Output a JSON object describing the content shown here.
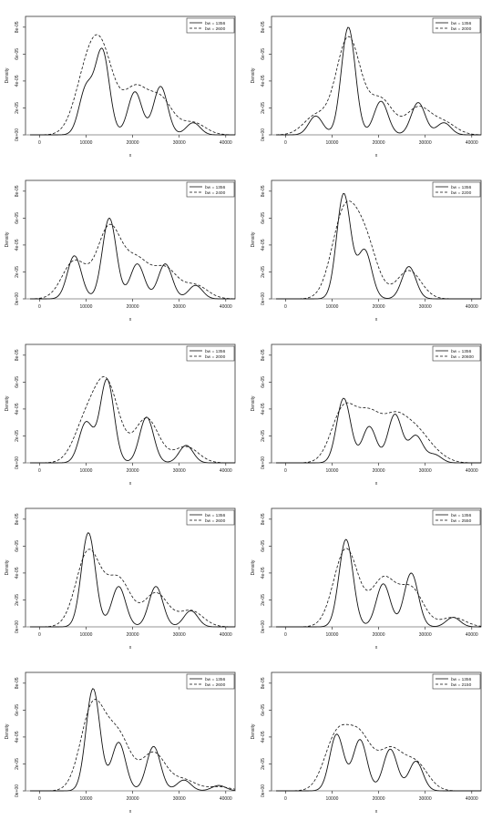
{
  "chart_data": [
    {
      "type": "line",
      "panel": 1,
      "xlim": [
        -3000,
        42000
      ],
      "ylim": [
        0,
        8.8
      ],
      "ylabel": "Density",
      "xlabel": "x",
      "yticks": [
        "0e+00",
        "2e-05",
        "4e-05",
        "6e-05",
        "8e-05"
      ],
      "xticks": [
        "0",
        "10000",
        "20000",
        "30000",
        "40000"
      ],
      "y_tick_values": [
        0,
        2,
        4,
        6,
        8
      ],
      "x_tick_values": [
        0,
        10000,
        20000,
        30000,
        40000
      ],
      "legend": {
        "position": "top-right",
        "entries": [
          "bw = 1356",
          "bw = 2600"
        ]
      },
      "series": [
        {
          "name": "bw = 1356",
          "style": "solid",
          "peaks": [
            [
              10000,
              3.4
            ],
            [
              13500,
              6.2
            ],
            [
              20500,
              3.2
            ],
            [
              26000,
              3.6
            ],
            [
              33000,
              0.9
            ]
          ]
        },
        {
          "name": "bw = 2600",
          "style": "dashed",
          "peaks": [
            [
              10000,
              3.8
            ],
            [
              13500,
              5.4
            ],
            [
              20500,
              3.3
            ],
            [
              26000,
              2.6
            ],
            [
              33000,
              0.9
            ]
          ]
        }
      ]
    },
    {
      "type": "line",
      "panel": 2,
      "xlim": [
        -3000,
        42000
      ],
      "ylim": [
        0,
        8.8
      ],
      "ylabel": "Density",
      "xlabel": "x",
      "yticks": [
        "0e+00",
        "2e-05",
        "4e-05",
        "6e-05",
        "8e-05"
      ],
      "xticks": [
        "0",
        "10000",
        "20000",
        "30000",
        "40000"
      ],
      "y_tick_values": [
        0,
        2,
        4,
        6,
        8
      ],
      "x_tick_values": [
        0,
        10000,
        20000,
        30000,
        40000
      ],
      "legend": {
        "position": "top-right",
        "entries": [
          "bw = 1356",
          "bw = 2000"
        ]
      },
      "series": [
        {
          "name": "bw = 1356",
          "style": "solid",
          "peaks": [
            [
              6500,
              1.4
            ],
            [
              13500,
              8.0
            ],
            [
              20500,
              2.5
            ],
            [
              28500,
              2.4
            ],
            [
              34000,
              0.9
            ]
          ]
        },
        {
          "name": "bw = 2000",
          "style": "dashed",
          "peaks": [
            [
              6500,
              1.4
            ],
            [
              13500,
              7.2
            ],
            [
              20500,
              2.6
            ],
            [
              28500,
              2.0
            ],
            [
              34000,
              0.9
            ]
          ]
        }
      ]
    },
    {
      "type": "line",
      "panel": 3,
      "xlim": [
        -3000,
        42000
      ],
      "ylim": [
        0,
        8.8
      ],
      "ylabel": "Density",
      "xlabel": "x",
      "yticks": [
        "0e+00",
        "2e-05",
        "4e-05",
        "6e-05",
        "8e-05"
      ],
      "xticks": [
        "0",
        "10000",
        "20000",
        "30000",
        "40000"
      ],
      "y_tick_values": [
        0,
        2,
        4,
        6,
        8
      ],
      "x_tick_values": [
        0,
        10000,
        20000,
        30000,
        40000
      ],
      "legend": {
        "position": "top-right",
        "entries": [
          "bw = 1356",
          "bw = 2400"
        ]
      },
      "series": [
        {
          "name": "bw = 1356",
          "style": "solid",
          "peaks": [
            [
              7500,
              3.2
            ],
            [
              15000,
              6.0
            ],
            [
              21000,
              2.6
            ],
            [
              27000,
              2.6
            ],
            [
              33500,
              1.0
            ]
          ]
        },
        {
          "name": "bw = 2400",
          "style": "dashed",
          "peaks": [
            [
              7500,
              2.8
            ],
            [
              15000,
              5.3
            ],
            [
              21000,
              2.7
            ],
            [
              27000,
              2.2
            ],
            [
              33500,
              1.0
            ]
          ]
        }
      ]
    },
    {
      "type": "line",
      "panel": 4,
      "xlim": [
        -3000,
        42000
      ],
      "ylim": [
        0,
        8.8
      ],
      "ylabel": "Density",
      "xlabel": "x",
      "yticks": [
        "0e+00",
        "2e-05",
        "4e-05",
        "6e-05",
        "8e-05"
      ],
      "xticks": [
        "0",
        "10000",
        "20000",
        "30000",
        "40000"
      ],
      "y_tick_values": [
        0,
        2,
        4,
        6,
        8
      ],
      "x_tick_values": [
        0,
        10000,
        20000,
        30000,
        40000
      ],
      "legend": {
        "position": "top-right",
        "entries": [
          "bw = 1356",
          "bw = 2200"
        ]
      },
      "series": [
        {
          "name": "bw = 1356",
          "style": "solid",
          "peaks": [
            [
              12500,
              7.8
            ],
            [
              17000,
              3.6
            ],
            [
              26500,
              2.4
            ]
          ]
        },
        {
          "name": "bw = 2200",
          "style": "dashed",
          "peaks": [
            [
              12500,
              6.0
            ],
            [
              17000,
              4.2
            ],
            [
              26500,
              2.1
            ]
          ]
        }
      ]
    },
    {
      "type": "line",
      "panel": 5,
      "xlim": [
        -3000,
        42000
      ],
      "ylim": [
        0,
        8.8
      ],
      "ylabel": "Density",
      "xlabel": "x",
      "yticks": [
        "0e+00",
        "2e-05",
        "4e-05",
        "6e-05",
        "8e-05"
      ],
      "xticks": [
        "0",
        "10000",
        "20000",
        "30000",
        "40000"
      ],
      "y_tick_values": [
        0,
        2,
        4,
        6,
        8
      ],
      "x_tick_values": [
        0,
        10000,
        20000,
        30000,
        40000
      ],
      "legend": {
        "position": "top-right",
        "entries": [
          "bw = 1356",
          "bw = 2000"
        ]
      },
      "series": [
        {
          "name": "bw = 1356",
          "style": "solid",
          "peaks": [
            [
              10000,
              3.0
            ],
            [
              14500,
              6.2
            ],
            [
              23000,
              3.4
            ],
            [
              31500,
              1.3
            ]
          ]
        },
        {
          "name": "bw = 2000",
          "style": "dashed",
          "peaks": [
            [
              10000,
              2.9
            ],
            [
              14500,
              5.6
            ],
            [
              23000,
              3.3
            ],
            [
              31500,
              1.2
            ]
          ]
        }
      ]
    },
    {
      "type": "line",
      "panel": 6,
      "xlim": [
        -3000,
        42000
      ],
      "ylim": [
        0,
        8.8
      ],
      "ylabel": "Density",
      "xlabel": "x",
      "yticks": [
        "0e+00",
        "2e-05",
        "4e-05",
        "6e-05",
        "8e-05"
      ],
      "xticks": [
        "0",
        "10000",
        "20000",
        "30000",
        "40000"
      ],
      "y_tick_values": [
        0,
        2,
        4,
        6,
        8
      ],
      "x_tick_values": [
        0,
        10000,
        20000,
        30000,
        40000
      ],
      "legend": {
        "position": "top-right",
        "entries": [
          "bw = 1356",
          "bw = 20600"
        ]
      },
      "series": [
        {
          "name": "bw = 1356",
          "style": "solid",
          "peaks": [
            [
              12500,
              4.8
            ],
            [
              18000,
              2.7
            ],
            [
              23500,
              3.6
            ],
            [
              28000,
              2.0
            ],
            [
              32000,
              0.6
            ]
          ]
        },
        {
          "name": "bw = 20600",
          "style": "dashed",
          "peaks": [
            [
              12500,
              4.0
            ],
            [
              18000,
              3.3
            ],
            [
              23500,
              3.0
            ],
            [
              28000,
              2.0
            ],
            [
              32000,
              0.6
            ]
          ]
        }
      ]
    },
    {
      "type": "line",
      "panel": 7,
      "xlim": [
        -3000,
        42000
      ],
      "ylim": [
        0,
        8.8
      ],
      "ylabel": "Density",
      "xlabel": "x",
      "yticks": [
        "0e+00",
        "2e-05",
        "4e-05",
        "6e-05",
        "8e-05"
      ],
      "xticks": [
        "0",
        "10000",
        "20000",
        "30000",
        "40000"
      ],
      "y_tick_values": [
        0,
        2,
        4,
        6,
        8
      ],
      "x_tick_values": [
        0,
        10000,
        20000,
        30000,
        40000
      ],
      "legend": {
        "position": "top-right",
        "entries": [
          "bw = 1356",
          "bw = 2600"
        ]
      },
      "series": [
        {
          "name": "bw = 1356",
          "style": "solid",
          "peaks": [
            [
              10500,
              7.0
            ],
            [
              17000,
              3.0
            ],
            [
              25000,
              3.0
            ],
            [
              32500,
              1.2
            ]
          ]
        },
        {
          "name": "bw = 2600",
          "style": "dashed",
          "peaks": [
            [
              10500,
              5.6
            ],
            [
              17000,
              3.5
            ],
            [
              25000,
              2.5
            ],
            [
              32500,
              1.2
            ]
          ]
        }
      ]
    },
    {
      "type": "line",
      "panel": 8,
      "xlim": [
        -3000,
        42000
      ],
      "ylim": [
        0,
        8.8
      ],
      "ylabel": "Density",
      "xlabel": "x",
      "yticks": [
        "0e+00",
        "2e-05",
        "4e-05",
        "6e-05",
        "8e-05"
      ],
      "xticks": [
        "0",
        "10000",
        "20000",
        "30000",
        "40000"
      ],
      "y_tick_values": [
        0,
        2,
        4,
        6,
        8
      ],
      "x_tick_values": [
        0,
        10000,
        20000,
        30000,
        40000
      ],
      "legend": {
        "position": "top-right",
        "entries": [
          "bw = 1356",
          "bw = 2550"
        ]
      },
      "series": [
        {
          "name": "bw = 1356",
          "style": "solid",
          "peaks": [
            [
              13000,
              6.5
            ],
            [
              21000,
              3.2
            ],
            [
              27000,
              4.0
            ],
            [
              36000,
              0.7
            ]
          ]
        },
        {
          "name": "bw = 2550",
          "style": "dashed",
          "peaks": [
            [
              13000,
              5.8
            ],
            [
              21000,
              3.5
            ],
            [
              27000,
              2.8
            ],
            [
              36000,
              0.7
            ]
          ]
        }
      ]
    },
    {
      "type": "line",
      "panel": 9,
      "xlim": [
        -3000,
        42000
      ],
      "ylim": [
        0,
        8.8
      ],
      "ylabel": "Density",
      "xlabel": "x",
      "yticks": [
        "0e+00",
        "2e-05",
        "4e-05",
        "6e-05",
        "8e-05"
      ],
      "xticks": [
        "0",
        "10000",
        "20000",
        "30000",
        "40000"
      ],
      "y_tick_values": [
        0,
        2,
        4,
        6,
        8
      ],
      "x_tick_values": [
        0,
        10000,
        20000,
        30000,
        40000
      ],
      "legend": {
        "position": "top-right",
        "entries": [
          "bw = 1356",
          "bw = 2600"
        ]
      },
      "series": [
        {
          "name": "bw = 1356",
          "style": "solid",
          "peaks": [
            [
              11500,
              7.6
            ],
            [
              17000,
              3.6
            ],
            [
              24500,
              3.3
            ],
            [
              31000,
              0.8
            ],
            [
              38500,
              0.4
            ]
          ]
        },
        {
          "name": "bw = 2600",
          "style": "dashed",
          "peaks": [
            [
              11500,
              6.3
            ],
            [
              17000,
              3.9
            ],
            [
              24500,
              2.8
            ],
            [
              31000,
              0.8
            ],
            [
              38500,
              0.3
            ]
          ]
        }
      ]
    },
    {
      "type": "line",
      "panel": 10,
      "xlim": [
        -3000,
        42000
      ],
      "ylim": [
        0,
        8.8
      ],
      "ylabel": "Density",
      "xlabel": "x",
      "yticks": [
        "0e+00",
        "2e-05",
        "4e-05",
        "6e-05",
        "8e-05"
      ],
      "xticks": [
        "0",
        "10000",
        "20000",
        "30000",
        "40000"
      ],
      "y_tick_values": [
        0,
        2,
        4,
        6,
        8
      ],
      "x_tick_values": [
        0,
        10000,
        20000,
        30000,
        40000
      ],
      "legend": {
        "position": "top-right",
        "entries": [
          "bw = 1356",
          "bw = 2150"
        ]
      },
      "series": [
        {
          "name": "bw = 1356",
          "style": "solid",
          "peaks": [
            [
              11000,
              4.2
            ],
            [
              16000,
              3.8
            ],
            [
              22500,
              3.1
            ],
            [
              28000,
              2.2
            ]
          ]
        },
        {
          "name": "bw = 2150",
          "style": "dashed",
          "peaks": [
            [
              11000,
              4.0
            ],
            [
              16000,
              3.8
            ],
            [
              22500,
              2.9
            ],
            [
              28000,
              2.0
            ]
          ]
        }
      ]
    }
  ]
}
